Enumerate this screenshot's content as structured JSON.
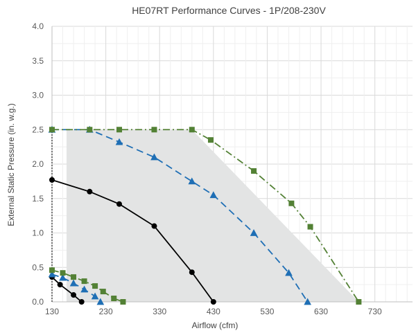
{
  "chart_data": {
    "type": "line",
    "title": "HE07RT Performance Curves - 1P/208-230V",
    "xlabel": "Airflow (cfm)",
    "ylabel": "External Static Pressure (in. w.g.)",
    "xlim": [
      130,
      800
    ],
    "ylim": [
      0,
      4
    ],
    "x_ticks": [
      "130",
      "230",
      "330",
      "430",
      "530",
      "630",
      "730"
    ],
    "y_ticks": [
      "0.0",
      "0.5",
      "1.0",
      "1.5",
      "2.0",
      "2.5",
      "3.0",
      "3.5",
      "4.0"
    ],
    "grid": "vertical and horizontal gridlines",
    "shaded_region": [
      [
        157,
        0
      ],
      [
        157,
        2.5
      ],
      [
        390,
        2.5
      ],
      [
        700,
        0
      ]
    ],
    "series": [
      {
        "style": "solid",
        "marker": "circle",
        "color": "#000000",
        "x": [
          130,
          200,
          255,
          320,
          390,
          430
        ],
        "y": [
          1.77,
          1.6,
          1.42,
          1.1,
          0.43,
          0
        ]
      },
      {
        "style": "dashed",
        "marker": "triangle",
        "color": "#1F6FB5",
        "x": [
          130,
          200,
          255,
          320,
          390,
          430,
          505,
          570,
          605
        ],
        "y": [
          2.5,
          2.5,
          2.32,
          2.1,
          1.75,
          1.55,
          1.0,
          0.42,
          0
        ]
      },
      {
        "style": "dash-dot",
        "marker": "square",
        "color": "#538135",
        "x": [
          130,
          200,
          255,
          320,
          390,
          425,
          505,
          575,
          610,
          700
        ],
        "y": [
          2.5,
          2.5,
          2.5,
          2.5,
          2.5,
          2.35,
          1.9,
          1.43,
          1.09,
          0
        ]
      },
      {
        "style": "solid",
        "marker": "circle",
        "color": "#000000",
        "x": [
          130,
          145,
          170,
          185
        ],
        "y": [
          0.36,
          0.25,
          0.1,
          0
        ]
      },
      {
        "style": "dashed",
        "marker": "triangle",
        "color": "#1F6FB5",
        "x": [
          130,
          150,
          170,
          190,
          210,
          220
        ],
        "y": [
          0.4,
          0.35,
          0.27,
          0.18,
          0.08,
          0
        ]
      },
      {
        "style": "dash-dot",
        "marker": "square",
        "color": "#538135",
        "x": [
          130,
          150,
          170,
          190,
          210,
          225,
          245,
          262
        ],
        "y": [
          0.46,
          0.42,
          0.36,
          0.3,
          0.23,
          0.15,
          0.05,
          0
        ]
      }
    ],
    "left_edge_line": {
      "style": "dotted",
      "color": "#777777",
      "x": 130,
      "from_y": 0,
      "to_y": 2.5
    }
  }
}
